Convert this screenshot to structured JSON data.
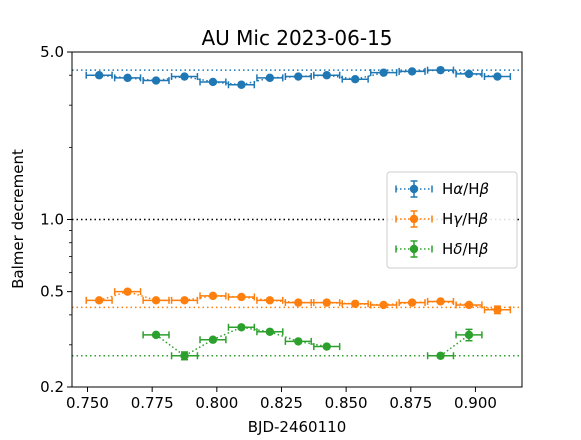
{
  "chart_data": {
    "type": "scatter",
    "title": "AU Mic 2023-06-15",
    "xlabel": "BJD-2460110",
    "ylabel": "Balmer decrement",
    "yscale": "log",
    "xlim": [
      0.744,
      0.918
    ],
    "ylim": [
      0.2,
      5.0
    ],
    "x_ticks": [
      0.75,
      0.775,
      0.8,
      0.825,
      0.85,
      0.875,
      0.9
    ],
    "x_tick_labels": [
      "0.750",
      "0.775",
      "0.800",
      "0.825",
      "0.850",
      "0.875",
      "0.900"
    ],
    "y_major_ticks": [
      0.2,
      0.5,
      1.0,
      5.0
    ],
    "y_tick_labels": [
      "0.2",
      "0.5",
      "1.0",
      "5.0"
    ],
    "y_minor_ticks": [
      0.3,
      0.4,
      0.6,
      0.7,
      0.8,
      0.9,
      2,
      3,
      4
    ],
    "x_error": 0.005,
    "reference_lines": [
      {
        "y": 4.2,
        "color": "#1f77b4"
      },
      {
        "y": 1.0,
        "color": "#000000"
      },
      {
        "y": 0.43,
        "color": "#ff7f0e"
      },
      {
        "y": 0.27,
        "color": "#2ca02c"
      }
    ],
    "legend": {
      "placement": "right"
    },
    "series": [
      {
        "name": "Hα/Hβ",
        "legend_parts": [
          "H",
          "α",
          "/H",
          "β"
        ],
        "color": "#1f77b4",
        "x": [
          0.7545,
          0.7655,
          0.7765,
          0.7875,
          0.7985,
          0.8095,
          0.8205,
          0.8315,
          0.8425,
          0.8535,
          0.8645,
          0.8755,
          0.8865,
          0.8975,
          0.9085
        ],
        "y": [
          4.0,
          3.9,
          3.8,
          3.95,
          3.75,
          3.65,
          3.9,
          3.95,
          4.0,
          3.85,
          4.1,
          4.15,
          4.2,
          4.05,
          3.95
        ]
      },
      {
        "name": "Hγ/Hβ",
        "legend_parts": [
          "H",
          "γ",
          "/H",
          "β"
        ],
        "color": "#ff7f0e",
        "x": [
          0.7545,
          0.7655,
          0.7765,
          0.7875,
          0.7985,
          0.8095,
          0.8205,
          0.8315,
          0.8425,
          0.8535,
          0.8645,
          0.8755,
          0.8865,
          0.8975,
          0.9085
        ],
        "y": [
          0.46,
          0.5,
          0.46,
          0.46,
          0.48,
          0.475,
          0.46,
          0.45,
          0.45,
          0.445,
          0.44,
          0.45,
          0.455,
          0.44,
          0.42
        ],
        "y_error": [
          0,
          0,
          0,
          0,
          0,
          0,
          0,
          0,
          0,
          0,
          0,
          0,
          0,
          0,
          0.015
        ]
      },
      {
        "name": "Hδ/Hβ",
        "legend_parts": [
          "H",
          "δ",
          "/H",
          "β"
        ],
        "color": "#2ca02c",
        "x": [
          0.7765,
          0.7875,
          0.7985,
          0.8095,
          0.8205,
          0.8315,
          0.8425,
          0.8865,
          0.8975
        ],
        "y": [
          0.33,
          0.27,
          0.315,
          0.355,
          0.34,
          0.31,
          0.295,
          0.27,
          0.33
        ],
        "y_error": [
          0,
          0.01,
          0,
          0,
          0,
          0,
          0,
          0,
          0.018
        ],
        "segments": [
          [
            0,
            6
          ],
          [
            7,
            8
          ]
        ]
      }
    ]
  }
}
